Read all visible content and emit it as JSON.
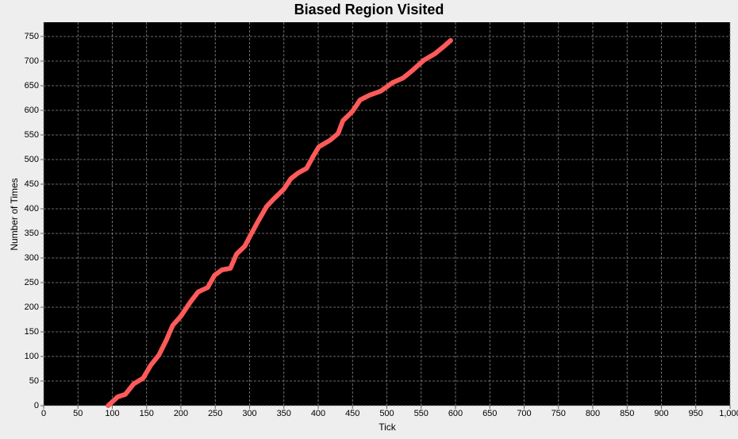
{
  "chart_data": {
    "type": "line",
    "title": "Biased Region Visited",
    "x_label": "Tick",
    "y_label": "Number of Times",
    "x": [
      94,
      108,
      119,
      131,
      145,
      156,
      168,
      179,
      188,
      200,
      214,
      225,
      239,
      249,
      260,
      272,
      281,
      293,
      302,
      313,
      325,
      336,
      350,
      360,
      371,
      383,
      392,
      401,
      417,
      429,
      436,
      450,
      461,
      475,
      491,
      508,
      524,
      538,
      554,
      570,
      584,
      593
    ],
    "series": [
      {
        "name": "Biased Region Visited",
        "color": "#ff5a5a",
        "values": [
          0,
          18,
          23,
          44,
          56,
          82,
          103,
          134,
          163,
          182,
          211,
          231,
          240,
          265,
          276,
          279,
          308,
          324,
          348,
          376,
          405,
          421,
          440,
          461,
          473,
          482,
          505,
          526,
          539,
          553,
          579,
          598,
          621,
          631,
          639,
          656,
          666,
          682,
          702,
          715,
          731,
          742
        ]
      }
    ],
    "xlim": [
      0,
      1000
    ],
    "ylim": [
      0,
      779
    ],
    "xticks": [
      0,
      50,
      100,
      150,
      200,
      250,
      300,
      350,
      400,
      450,
      500,
      550,
      600,
      650,
      700,
      750,
      800,
      850,
      900,
      950,
      {
        "value": 1000,
        "label": "1,000"
      }
    ],
    "yticks": [
      0,
      50,
      100,
      150,
      200,
      250,
      300,
      350,
      400,
      450,
      500,
      550,
      600,
      650,
      700,
      750
    ],
    "grid": true
  }
}
